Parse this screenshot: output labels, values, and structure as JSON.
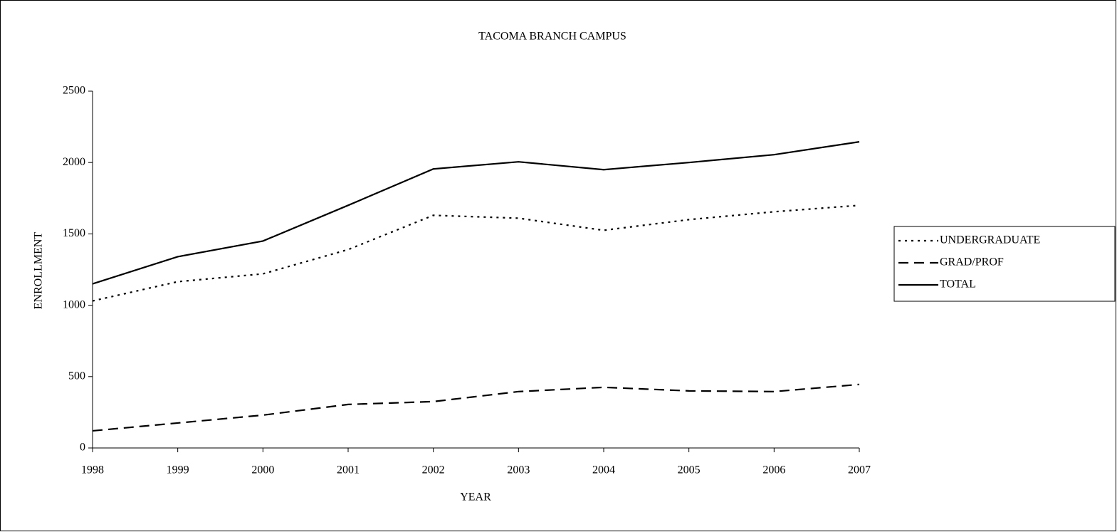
{
  "chart_data": {
    "type": "line",
    "title": "TACOMA BRANCH CAMPUS",
    "x_label": "YEAR",
    "y_label": "ENROLLMENT",
    "x": [
      1998,
      1999,
      2000,
      2001,
      2002,
      2003,
      2004,
      2005,
      2006,
      2007
    ],
    "xlim": [
      1998,
      2007
    ],
    "xticks": [
      1998,
      1999,
      2000,
      2001,
      2002,
      2003,
      2004,
      2005,
      2006,
      2007
    ],
    "ylim": [
      0,
      2500
    ],
    "yticks": [
      0,
      500,
      1000,
      1500,
      2000,
      2500
    ],
    "legend": "right",
    "series": [
      {
        "name": "UNDERGRADUATE",
        "color": "#000000",
        "linestyle": "dotted",
        "values": [
          1030,
          1165,
          1220,
          1390,
          1630,
          1610,
          1525,
          1600,
          1655,
          1700
        ]
      },
      {
        "name": "GRAD/PROF",
        "color": "#000000",
        "linestyle": "dashed",
        "values": [
          120,
          175,
          230,
          305,
          325,
          395,
          425,
          400,
          395,
          445
        ]
      },
      {
        "name": "TOTAL",
        "color": "#000000",
        "linestyle": "solid",
        "values": [
          1150,
          1340,
          1450,
          1700,
          1955,
          2005,
          1950,
          2000,
          2055,
          2145
        ]
      }
    ]
  }
}
